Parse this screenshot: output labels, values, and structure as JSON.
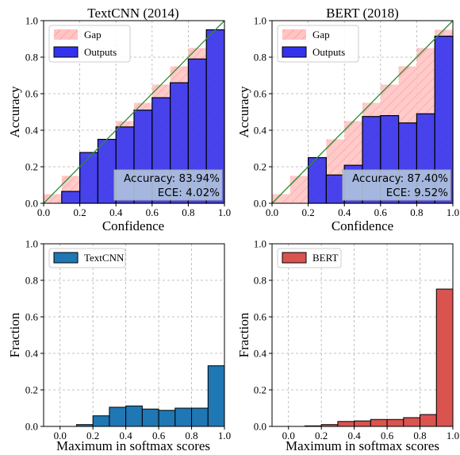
{
  "chart_data": [
    {
      "type": "bar",
      "title": "TextCNN (2014)",
      "xlabel": "Confidence",
      "ylabel": "Accuracy",
      "xlim": [
        0,
        1
      ],
      "ylim": [
        0,
        1
      ],
      "ticks": [
        "0.0",
        "0.2",
        "0.4",
        "0.6",
        "0.8",
        "1.0"
      ],
      "grid": true,
      "legend": "top-left",
      "bins": [
        0.05,
        0.15,
        0.25,
        0.35,
        0.45,
        0.55,
        0.65,
        0.75,
        0.85,
        0.95
      ],
      "series": [
        {
          "name": "Gap",
          "values": [
            0.05,
            0.15,
            0.25,
            0.35,
            0.45,
            0.55,
            0.65,
            0.75,
            0.85,
            0.95
          ],
          "color": "#ffb3b3"
        },
        {
          "name": "Outputs",
          "values": [
            0.0,
            0.065,
            0.278,
            0.35,
            0.418,
            0.51,
            0.578,
            0.66,
            0.79,
            0.95
          ],
          "color": "#3333ee"
        }
      ],
      "annotation": [
        "Accuracy: 83.94%",
        "ECE: 4.02%"
      ]
    },
    {
      "type": "bar",
      "title": "BERT (2018)",
      "xlabel": "Confidence",
      "ylabel": "Accuracy",
      "xlim": [
        0,
        1
      ],
      "ylim": [
        0,
        1
      ],
      "ticks": [
        "0.0",
        "0.2",
        "0.4",
        "0.6",
        "0.8",
        "1.0"
      ],
      "grid": true,
      "legend": "top-left",
      "bins": [
        0.05,
        0.15,
        0.25,
        0.35,
        0.45,
        0.55,
        0.65,
        0.75,
        0.85,
        0.95
      ],
      "series": [
        {
          "name": "Gap",
          "values": [
            0.05,
            0.15,
            0.25,
            0.35,
            0.45,
            0.55,
            0.65,
            0.75,
            0.85,
            0.95
          ],
          "color": "#ffb3b3"
        },
        {
          "name": "Outputs",
          "values": [
            0.0,
            0.0,
            0.25,
            0.155,
            0.208,
            0.475,
            0.48,
            0.44,
            0.49,
            0.915
          ],
          "color": "#3333ee"
        }
      ],
      "annotation": [
        "Accuracy: 87.40%",
        "ECE: 9.52%"
      ]
    },
    {
      "type": "bar",
      "title": "",
      "xlabel": "Maximum in softmax scores",
      "ylabel": "Fraction",
      "xlim": [
        -0.1,
        1.0
      ],
      "ylim": [
        0,
        1
      ],
      "xticks": [
        "0.0",
        "0.2",
        "0.4",
        "0.6",
        "0.8",
        "1.0"
      ],
      "yticks": [
        "0.0",
        "0.2",
        "0.4",
        "0.6",
        "0.8",
        "1.0"
      ],
      "grid": true,
      "legend": "top-left",
      "bins": [
        0.05,
        0.15,
        0.25,
        0.35,
        0.45,
        0.55,
        0.65,
        0.75,
        0.85,
        0.95
      ],
      "series": [
        {
          "name": "TextCNN",
          "values": [
            0.0,
            0.01,
            0.058,
            0.105,
            0.112,
            0.095,
            0.088,
            0.1,
            0.1,
            0.332
          ],
          "color": "#1f77b4"
        }
      ]
    },
    {
      "type": "bar",
      "title": "",
      "xlabel": "Maximum in softmax scores",
      "ylabel": "Fraction",
      "xlim": [
        -0.1,
        1.0
      ],
      "ylim": [
        0,
        1
      ],
      "xticks": [
        "0.0",
        "0.2",
        "0.4",
        "0.6",
        "0.8",
        "1.0"
      ],
      "yticks": [
        "0.0",
        "0.2",
        "0.4",
        "0.6",
        "0.8",
        "1.0"
      ],
      "grid": true,
      "legend": "top-left",
      "bins": [
        0.05,
        0.15,
        0.25,
        0.35,
        0.45,
        0.55,
        0.65,
        0.75,
        0.85,
        0.95
      ],
      "series": [
        {
          "name": "BERT",
          "values": [
            0.0,
            0.003,
            0.01,
            0.027,
            0.03,
            0.038,
            0.038,
            0.048,
            0.065,
            0.752
          ],
          "color": "#d9534f"
        }
      ]
    }
  ]
}
